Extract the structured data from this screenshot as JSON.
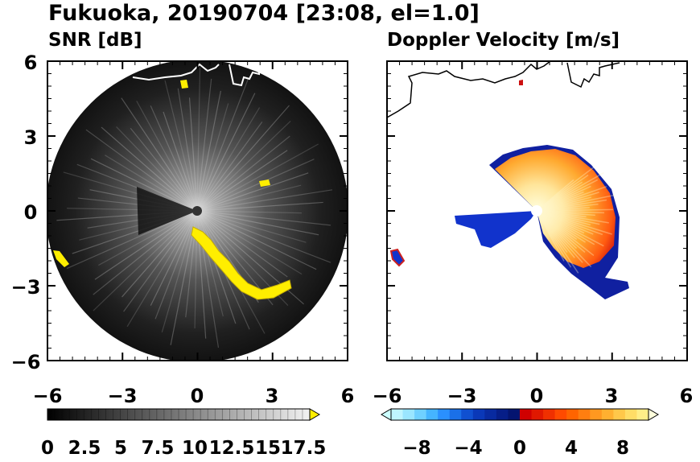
{
  "figure": {
    "title": "Fukuoka, 20190704 [23:08, el=1.0]"
  },
  "panels": [
    {
      "title": "SNR [dB]",
      "xticks": [
        "−6",
        "−3",
        "0",
        "3",
        "6"
      ],
      "yticks": [
        "6",
        "3",
        "0",
        "−3",
        "−6"
      ],
      "colorbar_labels": [
        "0",
        "2.5",
        "5",
        "7.5",
        "10",
        "12.5",
        "15",
        "17.5"
      ]
    },
    {
      "title": "Doppler Velocity [m/s]",
      "xticks": [
        "−6",
        "−3",
        "0",
        "3",
        "6"
      ],
      "colorbar_labels": [
        "−8",
        "−4",
        "0",
        "4",
        "8"
      ]
    }
  ],
  "chart_data": [
    {
      "type": "heatmap",
      "title": "SNR [dB]",
      "xlim": [
        -6,
        6
      ],
      "ylim": [
        -6,
        6
      ],
      "x_ticks": [
        -6,
        -3,
        0,
        3,
        6
      ],
      "y_ticks": [
        6,
        3,
        0,
        -3,
        -6
      ],
      "radar_range": 6,
      "colormap": "grayscale with yellow over-range",
      "colorbar_range": [
        0,
        18
      ],
      "colorbar_ticks": [
        0,
        2.5,
        5,
        7.5,
        10,
        12.5,
        15,
        17.5
      ],
      "colorbar_extend": "max",
      "over_color": "#ffee00",
      "high_snr_regions": [
        {
          "name": "coastal arc",
          "points": [
            [
              -0.1,
              -0.9
            ],
            [
              0.5,
              -1.4
            ],
            [
              1.0,
              -2.0
            ],
            [
              1.5,
              -2.6
            ],
            [
              2.0,
              -3.1
            ],
            [
              2.8,
              -3.3
            ],
            [
              3.5,
              -3.0
            ]
          ]
        },
        {
          "name": "west edge",
          "points": [
            [
              -5.8,
              -1.6
            ],
            [
              -5.4,
              -2.2
            ]
          ]
        },
        {
          "name": "north patch",
          "points": [
            [
              -0.6,
              5.4
            ],
            [
              -0.2,
              5.2
            ]
          ]
        },
        {
          "name": "east patch",
          "points": [
            [
              2.6,
              1.2
            ],
            [
              2.9,
              1.1
            ]
          ]
        }
      ]
    },
    {
      "type": "heatmap",
      "title": "Doppler Velocity [m/s]",
      "xlim": [
        -6,
        6
      ],
      "ylim": [
        -6,
        6
      ],
      "x_ticks": [
        -6,
        -3,
        0,
        3,
        6
      ],
      "radar_range": 6,
      "colormap": "diverging blue-white-red-yellow",
      "colorbar_range": [
        -10,
        10
      ],
      "colorbar_ticks": [
        -8,
        -4,
        0,
        4,
        8
      ],
      "colorbar_extend": "both",
      "sectors": [
        {
          "name": "receding echoes",
          "velocity_range": [
            2,
            10
          ],
          "azimuth_deg": [
            -30,
            70
          ],
          "max_range": 3.5
        },
        {
          "name": "approaching echoes",
          "velocity_range": [
            -10,
            -4
          ],
          "azimuth_deg": [
            170,
            200
          ],
          "max_range": 3.5
        }
      ]
    }
  ]
}
